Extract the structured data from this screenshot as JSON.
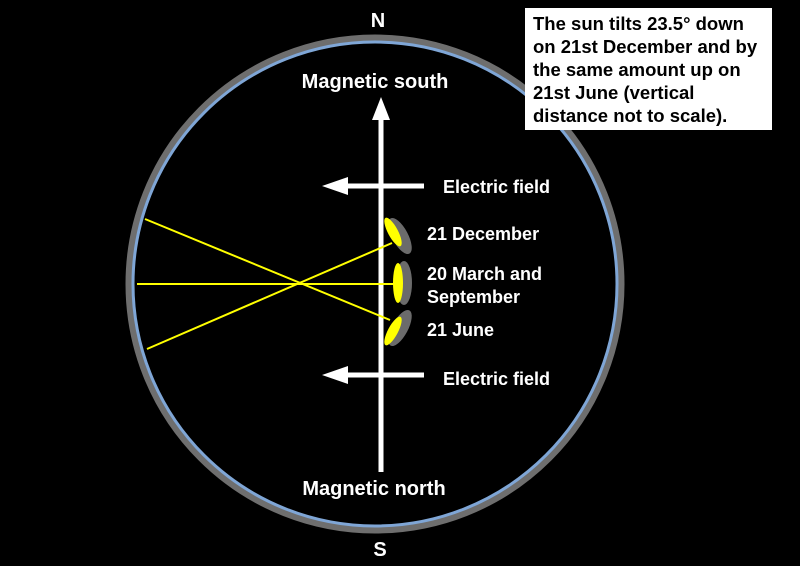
{
  "compass": {
    "north": "N",
    "south": "S"
  },
  "poles": {
    "top": "Magnetic south",
    "bottom": "Magnetic north"
  },
  "electric_field": {
    "upper": "Electric field",
    "lower": "Electric field"
  },
  "dates": {
    "december": "21 December",
    "equinox_line1": "20 March and",
    "equinox_line2": "September",
    "june": "21 June"
  },
  "note": "The sun tilts 23.5° down on 21st December and by the same amount up on 21st June (vertical distance not to scale).",
  "colors": {
    "background": "#000000",
    "ring_outer": "#6e6e6e",
    "ring_inner": "#7fa6d6",
    "sun": "#ffff00",
    "mirror_back": "#6b6b6b",
    "axis": "#ffffff",
    "note_bg": "#ffffff"
  }
}
